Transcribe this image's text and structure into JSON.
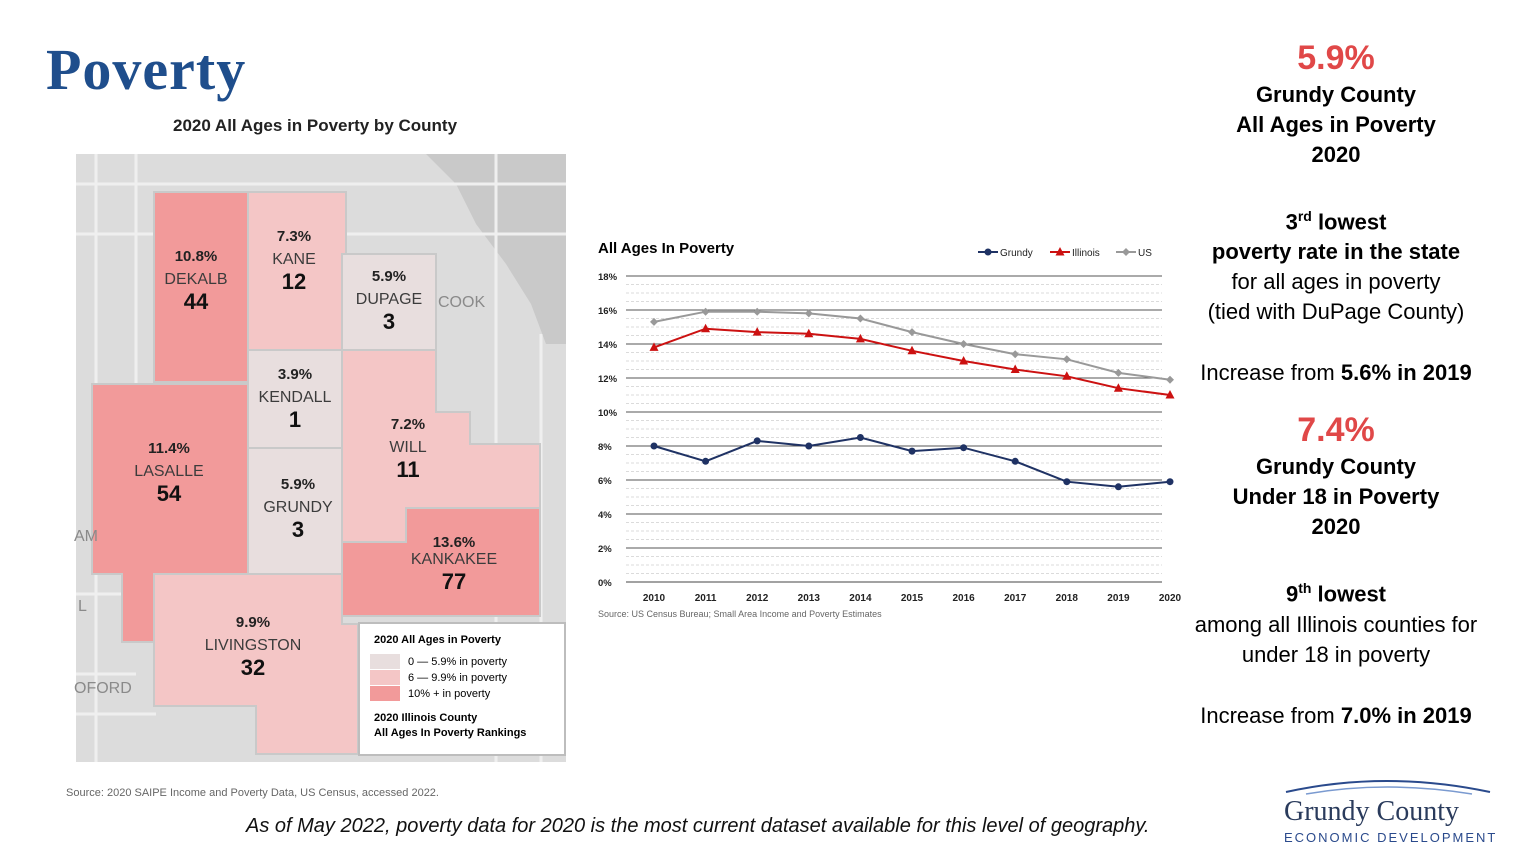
{
  "page": {
    "title": "Poverty",
    "map_title": "2020 All Ages in Poverty by County",
    "source": "Source: 2020 SAIPE Income and Poverty Data, US Census, accessed 2022.",
    "footnote": "As of May 2022, poverty data for 2020 is the most current dataset available for this level of geography."
  },
  "map": {
    "counties": [
      {
        "name": "DEKALB",
        "pct": "10.8%",
        "rank": "44",
        "fill": "#f29a9a"
      },
      {
        "name": "KANE",
        "pct": "7.3%",
        "rank": "12",
        "fill": "#f4c6c6"
      },
      {
        "name": "DUPAGE",
        "pct": "5.9%",
        "rank": "3",
        "fill": "#e8dede"
      },
      {
        "name": "KENDALL",
        "pct": "3.9%",
        "rank": "1",
        "fill": "#e8dede"
      },
      {
        "name": "LASALLE",
        "pct": "11.4%",
        "rank": "54",
        "fill": "#f29a9a"
      },
      {
        "name": "WILL",
        "pct": "7.2%",
        "rank": "11",
        "fill": "#f4c6c6"
      },
      {
        "name": "GRUNDY",
        "pct": "5.9%",
        "rank": "3",
        "fill": "#e8dede"
      },
      {
        "name": "KANKAKEE",
        "pct": "13.6%",
        "rank": "77",
        "fill": "#f29a9a"
      },
      {
        "name": "LIVINGSTON",
        "pct": "9.9%",
        "rank": "32",
        "fill": "#f4c6c6"
      }
    ],
    "ghost_labels": [
      "COOK",
      "OFORD",
      "AM",
      "L"
    ],
    "legend": {
      "title": "2020 All Ages in Poverty",
      "items": [
        {
          "label": "0 — 5.9% in poverty",
          "color": "#e8dede"
        },
        {
          "label": "6 — 9.9% in poverty",
          "color": "#f4c6c6"
        },
        {
          "label": "10% + in poverty",
          "color": "#f29a9a"
        }
      ],
      "footer_line1": "2020 Illinois County",
      "footer_line2": "All Ages In Poverty Rankings"
    }
  },
  "chart_data": {
    "type": "line",
    "title": "All Ages In Poverty",
    "x": [
      "2010",
      "2011",
      "2012",
      "2013",
      "2014",
      "2015",
      "2016",
      "2017",
      "2018",
      "2019",
      "2020"
    ],
    "ylim": [
      0,
      18
    ],
    "yticks": [
      "0%",
      "2%",
      "4%",
      "6%",
      "8%",
      "10%",
      "12%",
      "14%",
      "16%",
      "18%"
    ],
    "ytick_values": [
      0,
      2,
      4,
      6,
      8,
      10,
      12,
      14,
      16,
      18
    ],
    "legend_position": "top-right",
    "series": [
      {
        "name": "Grundy",
        "color": "#1f3264",
        "marker": "circle",
        "values": [
          8.0,
          7.1,
          8.3,
          8.0,
          8.5,
          7.7,
          7.9,
          7.1,
          5.9,
          5.6,
          5.9
        ]
      },
      {
        "name": "Illinois",
        "color": "#cc1111",
        "marker": "triangle",
        "values": [
          13.8,
          14.9,
          14.7,
          14.6,
          14.3,
          13.6,
          13.0,
          12.5,
          12.1,
          11.4,
          11.0
        ]
      },
      {
        "name": "US",
        "color": "#999999",
        "marker": "diamond",
        "values": [
          15.3,
          15.9,
          15.9,
          15.8,
          15.5,
          14.7,
          14.0,
          13.4,
          13.1,
          12.3,
          11.9
        ]
      }
    ],
    "source": "Source: US Census Bureau; Small Area Income and Poverty Estimates"
  },
  "highlights": {
    "all_ages_pct": "5.9%",
    "all_ages_line1": "Grundy County",
    "all_ages_line2": "All Ages in Poverty",
    "all_ages_line3": "2020",
    "rank1_num": "3",
    "rank1_sup": "rd",
    "rank1_rest": " lowest",
    "rank1_line2": "poverty rate in the state",
    "rank1_line3": "for all ages in poverty",
    "rank1_line4": "(tied with DuPage County)",
    "increase1_prefix": "Increase from ",
    "increase1_value": "5.6% in 2019",
    "under18_pct": "7.4%",
    "under18_line1": "Grundy County",
    "under18_line2": "Under 18 in Poverty",
    "under18_line3": "2020",
    "rank2_num": "9",
    "rank2_sup": "th",
    "rank2_rest": " lowest",
    "rank2_line2": "among all Illinois counties for",
    "rank2_line3": "under 18 in poverty",
    "increase2_prefix": "Increase from ",
    "increase2_value": "7.0% in 2019"
  },
  "logo": {
    "name": "Grundy County",
    "sub": "ECONOMIC DEVELOPMENT"
  }
}
